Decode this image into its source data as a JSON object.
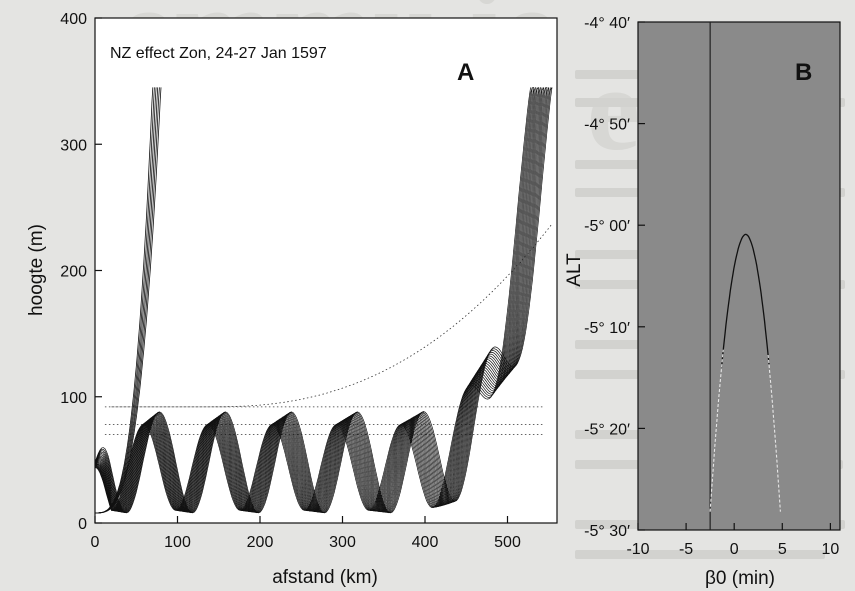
{
  "chart_data": [
    {
      "panel": "A",
      "type": "line",
      "title": "NZ effect Zon, 24-27 Jan 1597",
      "xlabel": "afstand (km)",
      "ylabel": "hoogte (m)",
      "xlim": [
        0,
        560
      ],
      "ylim": [
        0,
        400
      ],
      "xticks": [
        "0",
        "100",
        "200",
        "300",
        "400",
        "500"
      ],
      "yticks": [
        "0",
        "100",
        "200",
        "300",
        "400"
      ],
      "grid": false,
      "dotted_levels": [
        92,
        78,
        70
      ]
    },
    {
      "panel": "B",
      "type": "line",
      "xlabel": "β0 (min)",
      "ylabel": "ALT",
      "xlim": [
        -10,
        11
      ],
      "ylim": [
        -5.5,
        -4.6667
      ],
      "xticks": [
        "-10",
        "-5",
        "0",
        "5",
        "10"
      ],
      "yticks": [
        "-4° 40′",
        "-4° 50′",
        "-5° 00′",
        "-5° 10′",
        "-5° 20′",
        "-5° 30′"
      ],
      "vertical_line_x": -2.5,
      "curve_peak": {
        "x": 1.2,
        "alt": -5.015
      },
      "curve_base": {
        "x_left": -2.5,
        "x_right": 4.8,
        "alt": -5.47
      },
      "background_color": "#8a8a8a",
      "grid": false
    }
  ]
}
